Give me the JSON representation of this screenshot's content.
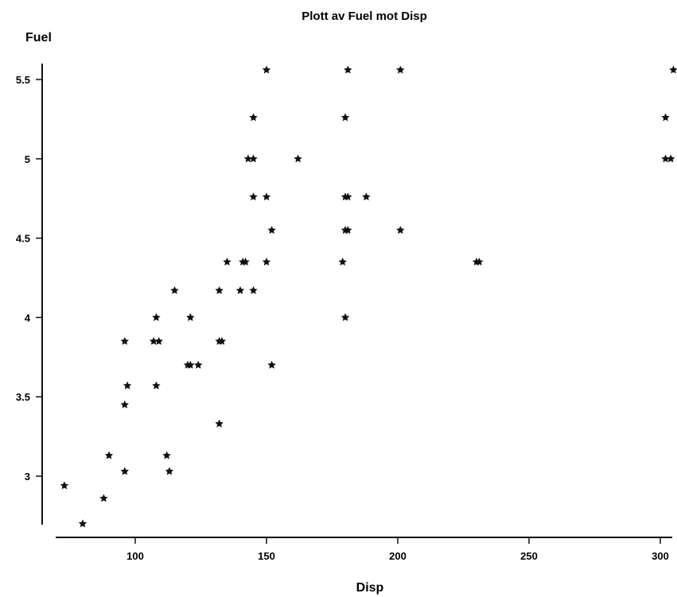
{
  "chart_data": {
    "type": "scatter",
    "title": "Plott av Fuel mot Disp",
    "xlabel": "Disp",
    "ylabel": "Fuel",
    "xlim": [
      70,
      307
    ],
    "ylim": [
      2.7,
      5.65
    ],
    "xticks": [
      100,
      150,
      200,
      250,
      300
    ],
    "xtick_labels": [
      "100",
      "150",
      "200",
      "250",
      "300"
    ],
    "yticks": [
      3,
      3.5,
      4,
      4.5,
      5,
      5.5
    ],
    "ytick_labels": [
      "3",
      "3.5",
      "4",
      "4.5",
      "5",
      "5.5"
    ],
    "grid": false,
    "marker": "star",
    "color": "#111111",
    "points": [
      {
        "x": 73,
        "y": 2.94
      },
      {
        "x": 80,
        "y": 2.7
      },
      {
        "x": 88,
        "y": 2.86
      },
      {
        "x": 90,
        "y": 3.13
      },
      {
        "x": 96,
        "y": 3.03
      },
      {
        "x": 96,
        "y": 3.45
      },
      {
        "x": 97,
        "y": 3.57
      },
      {
        "x": 96,
        "y": 3.85
      },
      {
        "x": 107,
        "y": 3.85
      },
      {
        "x": 109,
        "y": 3.85
      },
      {
        "x": 108,
        "y": 4.0
      },
      {
        "x": 108,
        "y": 3.57
      },
      {
        "x": 112,
        "y": 3.13
      },
      {
        "x": 113,
        "y": 3.03
      },
      {
        "x": 115,
        "y": 4.17
      },
      {
        "x": 120,
        "y": 3.7
      },
      {
        "x": 121,
        "y": 3.7
      },
      {
        "x": 124,
        "y": 3.7
      },
      {
        "x": 121,
        "y": 4.0
      },
      {
        "x": 132,
        "y": 3.85
      },
      {
        "x": 133,
        "y": 3.85
      },
      {
        "x": 132,
        "y": 3.33
      },
      {
        "x": 132,
        "y": 4.17
      },
      {
        "x": 135,
        "y": 4.35
      },
      {
        "x": 141,
        "y": 4.35
      },
      {
        "x": 142,
        "y": 4.35
      },
      {
        "x": 140,
        "y": 4.17
      },
      {
        "x": 145,
        "y": 4.17
      },
      {
        "x": 143,
        "y": 5.0
      },
      {
        "x": 145,
        "y": 5.0
      },
      {
        "x": 145,
        "y": 5.26
      },
      {
        "x": 145,
        "y": 4.76
      },
      {
        "x": 150,
        "y": 5.56
      },
      {
        "x": 150,
        "y": 4.76
      },
      {
        "x": 150,
        "y": 4.35
      },
      {
        "x": 152,
        "y": 4.55
      },
      {
        "x": 152,
        "y": 3.7
      },
      {
        "x": 162,
        "y": 5.0
      },
      {
        "x": 179,
        "y": 4.35
      },
      {
        "x": 180,
        "y": 4.0
      },
      {
        "x": 180,
        "y": 4.55
      },
      {
        "x": 181,
        "y": 4.55
      },
      {
        "x": 180,
        "y": 4.76
      },
      {
        "x": 181,
        "y": 4.76
      },
      {
        "x": 180,
        "y": 5.26
      },
      {
        "x": 181,
        "y": 5.56
      },
      {
        "x": 188,
        "y": 4.76
      },
      {
        "x": 201,
        "y": 5.56
      },
      {
        "x": 201,
        "y": 4.55
      },
      {
        "x": 230,
        "y": 4.35
      },
      {
        "x": 231,
        "y": 4.35
      },
      {
        "x": 302,
        "y": 5.26
      },
      {
        "x": 302,
        "y": 5.0
      },
      {
        "x": 304,
        "y": 5.0
      },
      {
        "x": 305,
        "y": 5.56
      }
    ]
  }
}
